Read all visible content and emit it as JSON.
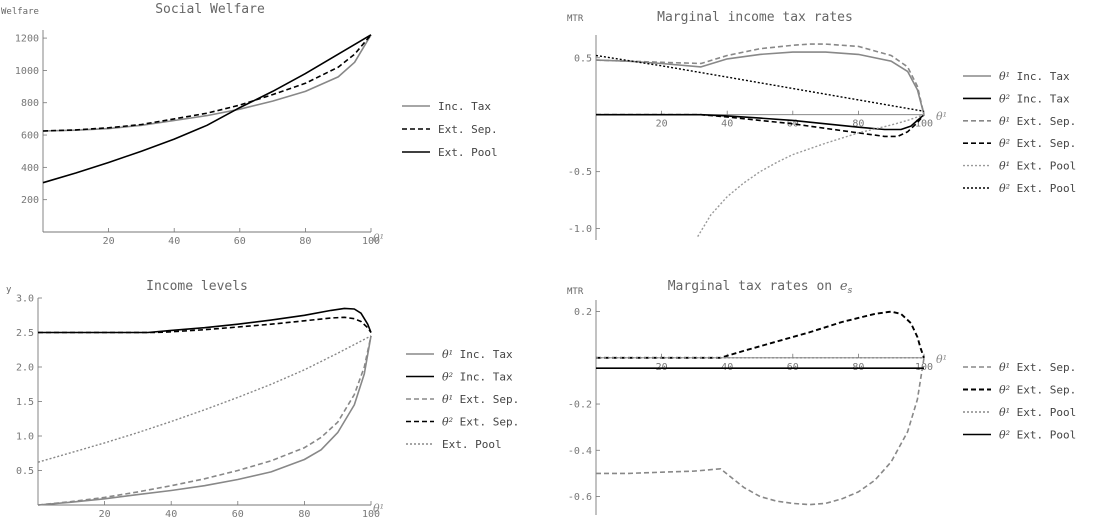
{
  "chart_data": [
    {
      "type": "line",
      "title": "Social Welfare",
      "ylabel": "Welfare",
      "xlabel": "θ¹",
      "xlim": [
        0,
        100
      ],
      "ylim": [
        0,
        1250
      ],
      "xticks": [
        20,
        40,
        60,
        80,
        100
      ],
      "yticks": [
        200,
        400,
        600,
        800,
        1000,
        1200
      ],
      "legend_position": "right",
      "series": [
        {
          "name": "Inc. Tax",
          "color": "#888888",
          "width": 1.6,
          "dash": "",
          "x": [
            0,
            10,
            20,
            30,
            40,
            50,
            60,
            70,
            80,
            90,
            95,
            100
          ],
          "y": [
            625,
            630,
            640,
            660,
            690,
            720,
            760,
            810,
            870,
            960,
            1050,
            1220
          ]
        },
        {
          "name": "Ext. Sep.",
          "color": "#000000",
          "width": 1.6,
          "dash": "5,3",
          "x": [
            0,
            10,
            20,
            30,
            40,
            50,
            60,
            70,
            80,
            90,
            95,
            100
          ],
          "y": [
            625,
            632,
            645,
            665,
            700,
            735,
            785,
            850,
            920,
            1020,
            1100,
            1220
          ]
        },
        {
          "name": "Ext. Pool",
          "color": "#000000",
          "width": 1.6,
          "dash": "",
          "x": [
            0,
            10,
            20,
            30,
            40,
            50,
            60,
            70,
            80,
            90,
            100
          ],
          "y": [
            305,
            365,
            430,
            500,
            575,
            660,
            770,
            870,
            980,
            1100,
            1220
          ]
        }
      ]
    },
    {
      "type": "line",
      "title": "Marginal income tax rates",
      "ylabel": "MTR",
      "xlabel": "θ¹",
      "xlim": [
        0,
        100
      ],
      "ylim": [
        -1.1,
        0.7
      ],
      "xticks": [
        20,
        40,
        60,
        80,
        100
      ],
      "yticks": [
        -1.0,
        -0.5,
        0.5
      ],
      "legend_position": "right",
      "series": [
        {
          "name": "θ¹ Inc. Tax",
          "sym": "θ¹",
          "text": "Inc. Tax",
          "color": "#888888",
          "width": 1.6,
          "dash": "",
          "x": [
            0,
            10,
            20,
            32,
            40,
            50,
            60,
            70,
            80,
            90,
            95,
            98,
            100
          ],
          "y": [
            0.48,
            0.47,
            0.45,
            0.42,
            0.49,
            0.53,
            0.55,
            0.55,
            0.53,
            0.47,
            0.38,
            0.22,
            0.0
          ]
        },
        {
          "name": "θ² Inc. Tax",
          "sym": "θ²",
          "text": "Inc. Tax",
          "color": "#000000",
          "width": 1.6,
          "dash": "",
          "x": [
            0,
            10,
            20,
            32,
            40,
            50,
            60,
            70,
            80,
            88,
            93,
            96,
            98,
            100
          ],
          "y": [
            0.0,
            0.0,
            0.0,
            0.0,
            -0.01,
            -0.03,
            -0.05,
            -0.08,
            -0.11,
            -0.13,
            -0.13,
            -0.1,
            -0.05,
            0.0
          ]
        },
        {
          "name": "θ¹ Ext. Sep.",
          "sym": "θ¹",
          "text": "Ext. Sep.",
          "color": "#888888",
          "width": 1.6,
          "dash": "5,3",
          "x": [
            0,
            10,
            20,
            32,
            40,
            50,
            60,
            65,
            70,
            80,
            90,
            95,
            98,
            100
          ],
          "y": [
            0.48,
            0.47,
            0.46,
            0.45,
            0.52,
            0.58,
            0.61,
            0.62,
            0.62,
            0.6,
            0.52,
            0.42,
            0.25,
            0.0
          ]
        },
        {
          "name": "θ² Ext. Sep.",
          "sym": "θ²",
          "text": "Ext. Sep.",
          "color": "#000000",
          "width": 1.6,
          "dash": "5,3",
          "x": [
            0,
            10,
            20,
            32,
            40,
            50,
            60,
            70,
            80,
            88,
            92,
            95,
            98,
            100
          ],
          "y": [
            0.0,
            0.0,
            0.0,
            0.0,
            -0.02,
            -0.05,
            -0.08,
            -0.12,
            -0.16,
            -0.19,
            -0.19,
            -0.15,
            -0.07,
            0.0
          ]
        },
        {
          "name": "θ¹ Ext. Pool",
          "sym": "θ¹",
          "text": "Ext. Pool",
          "color": "#999999",
          "width": 1.4,
          "dash": "2,2",
          "x": [
            31,
            35,
            40,
            45,
            50,
            55,
            60,
            70,
            80,
            90,
            95,
            100
          ],
          "y": [
            -1.07,
            -0.88,
            -0.72,
            -0.6,
            -0.5,
            -0.42,
            -0.35,
            -0.25,
            -0.16,
            -0.09,
            -0.05,
            0.0
          ]
        },
        {
          "name": "θ² Ext. Pool",
          "sym": "θ²",
          "text": "Ext. Pool",
          "color": "#000000",
          "width": 1.4,
          "dash": "2,2",
          "x": [
            0,
            20,
            40,
            60,
            80,
            100
          ],
          "y": [
            0.52,
            0.43,
            0.33,
            0.23,
            0.13,
            0.03
          ]
        }
      ]
    },
    {
      "type": "line",
      "title": "Income levels",
      "ylabel": "y",
      "xlabel": "θ¹",
      "xlim": [
        0,
        100
      ],
      "ylim": [
        0,
        3.0
      ],
      "xticks": [
        20,
        40,
        60,
        80,
        100
      ],
      "yticks": [
        0.5,
        1.0,
        1.5,
        2.0,
        2.5,
        3.0
      ],
      "legend_position": "right",
      "series": [
        {
          "name": "θ¹ Inc. Tax",
          "sym": "θ¹",
          "text": "Inc. Tax",
          "color": "#888888",
          "width": 1.6,
          "dash": "",
          "x": [
            0,
            10,
            20,
            30,
            40,
            50,
            60,
            70,
            80,
            85,
            90,
            95,
            98,
            100
          ],
          "y": [
            0.0,
            0.04,
            0.09,
            0.15,
            0.21,
            0.28,
            0.37,
            0.48,
            0.66,
            0.8,
            1.05,
            1.45,
            1.9,
            2.45
          ]
        },
        {
          "name": "θ² Inc. Tax",
          "sym": "θ²",
          "text": "Inc. Tax",
          "color": "#000000",
          "width": 1.6,
          "dash": "",
          "x": [
            0,
            20,
            33,
            40,
            50,
            60,
            70,
            80,
            88,
            92,
            95,
            97,
            99,
            100
          ],
          "y": [
            2.5,
            2.5,
            2.5,
            2.53,
            2.57,
            2.62,
            2.68,
            2.75,
            2.82,
            2.85,
            2.84,
            2.78,
            2.62,
            2.5
          ]
        },
        {
          "name": "θ¹ Ext. Sep.",
          "sym": "θ¹",
          "text": "Ext. Sep.",
          "color": "#888888",
          "width": 1.6,
          "dash": "5,3",
          "x": [
            0,
            10,
            20,
            30,
            40,
            50,
            60,
            70,
            80,
            85,
            90,
            95,
            98,
            100
          ],
          "y": [
            0.0,
            0.05,
            0.11,
            0.19,
            0.28,
            0.38,
            0.5,
            0.64,
            0.83,
            0.98,
            1.2,
            1.6,
            2.0,
            2.45
          ]
        },
        {
          "name": "θ² Ext. Sep.",
          "sym": "θ²",
          "text": "Ext. Sep.",
          "color": "#000000",
          "width": 1.6,
          "dash": "5,3",
          "x": [
            0,
            20,
            35,
            40,
            50,
            60,
            70,
            80,
            88,
            92,
            95,
            97,
            99,
            100
          ],
          "y": [
            2.5,
            2.5,
            2.5,
            2.51,
            2.54,
            2.58,
            2.62,
            2.67,
            2.71,
            2.72,
            2.7,
            2.66,
            2.57,
            2.5
          ]
        },
        {
          "name": "Ext. Pool",
          "sym": "",
          "text": "Ext. Pool",
          "color": "#888888",
          "width": 1.4,
          "dash": "2,2",
          "x": [
            0,
            10,
            20,
            30,
            40,
            50,
            60,
            70,
            80,
            90,
            100
          ],
          "y": [
            0.62,
            0.76,
            0.9,
            1.05,
            1.21,
            1.38,
            1.56,
            1.75,
            1.96,
            2.2,
            2.45
          ]
        }
      ]
    },
    {
      "type": "line",
      "title": "Marginal tax rates on ",
      "title_math": "e",
      "title_sub": "s",
      "ylabel": "MTR",
      "xlabel": "θ¹",
      "xlim": [
        0,
        100
      ],
      "ylim": [
        -0.68,
        0.25
      ],
      "xticks": [
        20,
        40,
        60,
        80,
        100
      ],
      "yticks": [
        -0.6,
        -0.4,
        -0.2,
        0.2
      ],
      "legend_position": "right",
      "series": [
        {
          "name": "θ¹ Ext. Sep.",
          "sym": "θ¹",
          "text": "Ext. Sep.",
          "color": "#888888",
          "width": 1.6,
          "dash": "5,3",
          "x": [
            0,
            10,
            20,
            30,
            38,
            45,
            50,
            55,
            60,
            65,
            70,
            75,
            80,
            85,
            90,
            95,
            98,
            100
          ],
          "y": [
            -0.5,
            -0.5,
            -0.495,
            -0.49,
            -0.48,
            -0.56,
            -0.6,
            -0.62,
            -0.63,
            -0.635,
            -0.63,
            -0.61,
            -0.58,
            -0.53,
            -0.45,
            -0.32,
            -0.18,
            0.0
          ]
        },
        {
          "name": "θ² Ext. Sep.",
          "sym": "θ²",
          "text": "Ext. Sep.",
          "color": "#000000",
          "width": 1.9,
          "dash": "5,3",
          "x": [
            0,
            20,
            38,
            45,
            55,
            65,
            75,
            85,
            90,
            93,
            96,
            98,
            99,
            100
          ],
          "y": [
            0.0,
            0.0,
            0.0,
            0.03,
            0.07,
            0.11,
            0.155,
            0.19,
            0.2,
            0.19,
            0.15,
            0.09,
            0.04,
            0.0
          ]
        },
        {
          "name": "θ¹ Ext. Pool",
          "sym": "θ¹",
          "text": "Ext. Pool",
          "color": "#888888",
          "width": 1.4,
          "dash": "2,2",
          "x": [
            0,
            100
          ],
          "y": [
            0.0,
            0.0
          ]
        },
        {
          "name": "θ² Ext. Pool",
          "sym": "θ²",
          "text": "Ext. Pool",
          "color": "#000000",
          "width": 1.6,
          "dash": "",
          "x": [
            0,
            100
          ],
          "y": [
            -0.045,
            -0.045
          ]
        }
      ]
    }
  ]
}
